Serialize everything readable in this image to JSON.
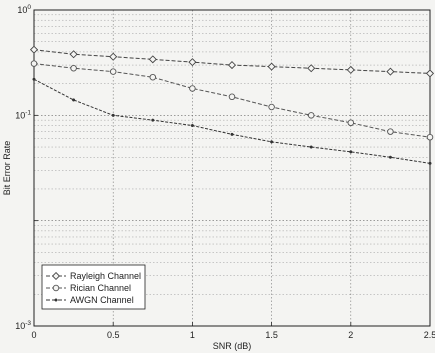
{
  "chart_data": {
    "type": "line",
    "xlabel": "SNR (dB)",
    "ylabel": "Bit Error Rate",
    "xlim": [
      0,
      2.5
    ],
    "ylim": [
      0.001,
      1
    ],
    "yscale": "log",
    "grid": true,
    "legend_position": "bottom-left",
    "x_ticks": [
      {
        "value": 0,
        "label": "0"
      },
      {
        "value": 0.5,
        "label": "0.5"
      },
      {
        "value": 1,
        "label": "1"
      },
      {
        "value": 1.5,
        "label": "1.5"
      },
      {
        "value": 2,
        "label": "2"
      },
      {
        "value": 2.5,
        "label": "2.5"
      }
    ],
    "y_ticks": [
      {
        "value": 1,
        "base": "10",
        "exp": "0"
      },
      {
        "value": 0.1,
        "base": "10",
        "exp": "-1"
      },
      {
        "value": 0.001,
        "base": "10",
        "exp": "-3"
      }
    ],
    "x": [
      0,
      0.25,
      0.5,
      0.75,
      1,
      1.25,
      1.5,
      1.75,
      2,
      2.25,
      2.5
    ],
    "series": [
      {
        "name": "Rayleigh Channel",
        "color": "#444444",
        "marker": "diamond",
        "values": [
          0.42,
          0.38,
          0.36,
          0.34,
          0.32,
          0.3,
          0.29,
          0.28,
          0.27,
          0.26,
          0.25
        ]
      },
      {
        "name": "Rician Channel",
        "color": "#555555",
        "marker": "circle",
        "values": [
          0.31,
          0.28,
          0.26,
          0.23,
          0.18,
          0.15,
          0.12,
          0.1,
          0.085,
          0.07,
          0.062
        ]
      },
      {
        "name": "AWGN Channel",
        "color": "#333333",
        "marker": "dot",
        "values": [
          0.22,
          0.14,
          0.1,
          0.09,
          0.08,
          0.066,
          0.056,
          0.05,
          0.045,
          0.04,
          0.035
        ]
      }
    ]
  }
}
